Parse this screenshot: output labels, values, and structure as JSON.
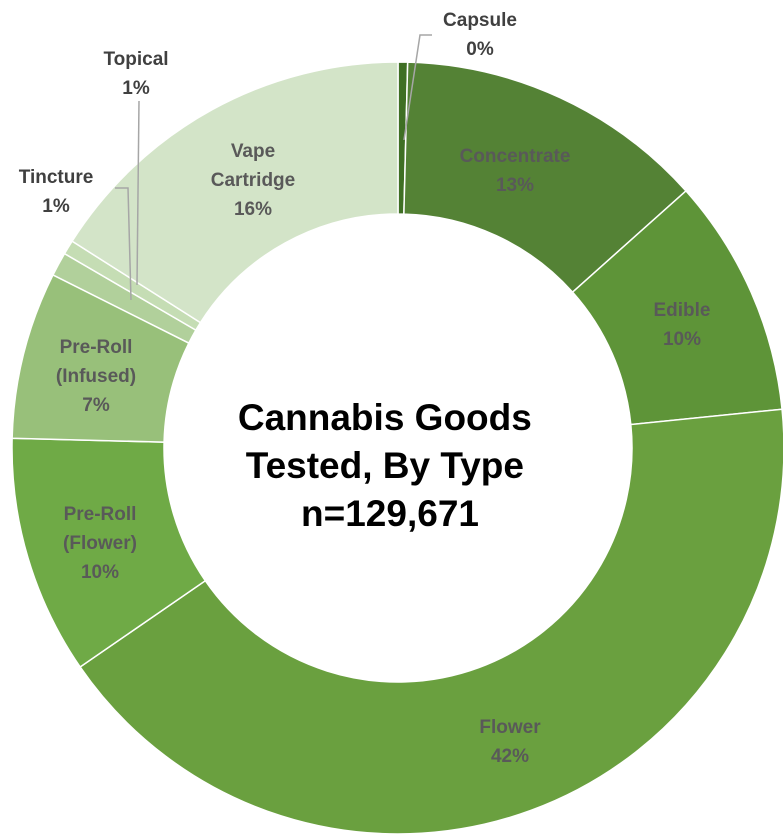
{
  "chart_data": {
    "type": "donut",
    "title_lines": [
      "Cannabis Goods",
      "Tested, By Type",
      "n=129,671"
    ],
    "slices": [
      {
        "category": "Capsule",
        "label_lines": [
          "Capsule"
        ],
        "value": 0.4,
        "pct_label": "0%",
        "color": "#3f6f24"
      },
      {
        "category": "Concentrate",
        "label_lines": [
          "Concentrate"
        ],
        "value": 13,
        "pct_label": "13%",
        "color": "#548235"
      },
      {
        "category": "Edible",
        "label_lines": [
          "Edible"
        ],
        "value": 10,
        "pct_label": "10%",
        "color": "#5e9438"
      },
      {
        "category": "Flower",
        "label_lines": [
          "Flower"
        ],
        "value": 42,
        "pct_label": "42%",
        "color": "#6aa03f"
      },
      {
        "category": "Pre-Roll (Flower)",
        "label_lines": [
          "Pre-Roll",
          "(Flower)"
        ],
        "value": 10,
        "pct_label": "10%",
        "color": "#6faa46"
      },
      {
        "category": "Pre-Roll (Infused)",
        "label_lines": [
          "Pre-Roll",
          "(Infused)"
        ],
        "value": 7,
        "pct_label": "7%",
        "color": "#98c07a"
      },
      {
        "category": "Tincture",
        "label_lines": [
          "Tincture"
        ],
        "value": 1,
        "pct_label": "1%",
        "color": "#b1d09b"
      },
      {
        "category": "Topical",
        "label_lines": [
          "Topical"
        ],
        "value": 0.6,
        "pct_label": "1%",
        "color": "#c5ddb4"
      },
      {
        "category": "Vape Cartridge",
        "label_lines": [
          "Vape",
          "Cartridge"
        ],
        "value": 16,
        "pct_label": "16%",
        "color": "#d3e4c8"
      }
    ],
    "label_color_dark": "#404040",
    "label_color_mid": "#595959"
  }
}
